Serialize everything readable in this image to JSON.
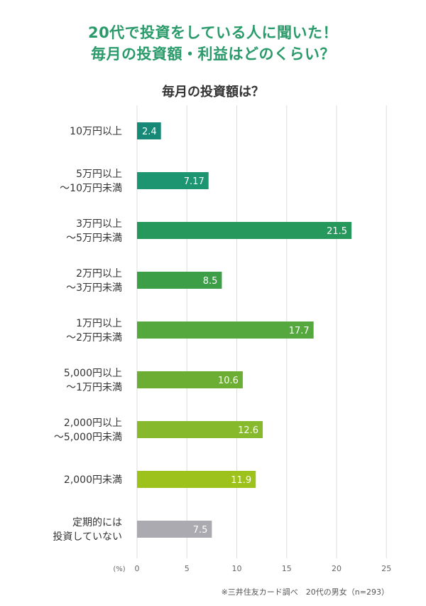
{
  "headline": [
    "20代で投資をしている人に聞いた！",
    "毎月の投資額・利益はどのくらい？"
  ],
  "source_note": "※三井住友カード調べ　20代の男女（n=293）",
  "chart_data": {
    "type": "bar",
    "orientation": "horizontal",
    "title": "毎月の投資額は？",
    "unit_label": "(%)",
    "xlim": [
      0,
      25
    ],
    "xticks": [
      0,
      5,
      10,
      15,
      20,
      25
    ],
    "grid": true,
    "categories": [
      [
        "10万円以上"
      ],
      [
        "5万円以上",
        "～10万円未満"
      ],
      [
        "3万円以上",
        "～5万円未満"
      ],
      [
        "2万円以上",
        "～3万円未満"
      ],
      [
        "1万円以上",
        "～2万円未満"
      ],
      [
        "5,000円以上",
        "～1万円未満"
      ],
      [
        "2,000円以上",
        "～5,000円未満"
      ],
      [
        "2,000円未満"
      ],
      [
        "定期的には",
        "投資していない"
      ]
    ],
    "values": [
      2.4,
      7.17,
      21.5,
      8.5,
      17.7,
      10.6,
      12.6,
      11.9,
      7.5
    ],
    "value_labels": [
      "2.4",
      "7.17",
      "21.5",
      "8.5",
      "17.7",
      "10.6",
      "12.6",
      "11.9",
      "7.5"
    ],
    "colors": [
      "#178a77",
      "#1c9570",
      "#26985c",
      "#3d9e48",
      "#55a83d",
      "#6cae34",
      "#86b92b",
      "#9ec21c",
      "#aaaab0"
    ]
  }
}
